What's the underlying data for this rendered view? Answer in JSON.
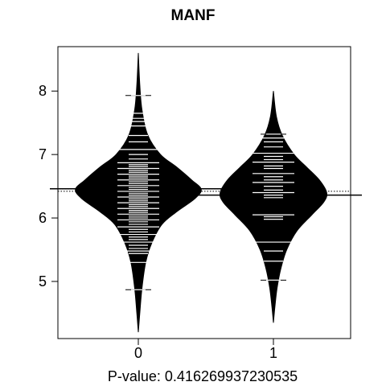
{
  "chart_data": {
    "type": "beanplot",
    "title": "MANF",
    "xlabel": "P-value: 0.416269937230535",
    "ylabel": "",
    "categories": [
      "0",
      "1"
    ],
    "y_ticks": [
      5,
      6,
      7,
      8
    ],
    "x_ticks": [
      "0",
      "1"
    ],
    "ylim": [
      4.1,
      8.7
    ],
    "overall_line": 6.42,
    "colors": {
      "bean_fill": "#000000",
      "data_line": "#ffffff",
      "axis": "#000000"
    },
    "series": [
      {
        "group": "0",
        "mean": 6.46,
        "density": [
          [
            4.2,
            0.0
          ],
          [
            4.5,
            0.02
          ],
          [
            4.9,
            0.05
          ],
          [
            5.3,
            0.1
          ],
          [
            5.6,
            0.18
          ],
          [
            5.9,
            0.32
          ],
          [
            6.1,
            0.52
          ],
          [
            6.3,
            0.76
          ],
          [
            6.45,
            0.85
          ],
          [
            6.6,
            0.72
          ],
          [
            6.8,
            0.52
          ],
          [
            7.0,
            0.3
          ],
          [
            7.3,
            0.13
          ],
          [
            7.7,
            0.05
          ],
          [
            8.1,
            0.02
          ],
          [
            8.6,
            0.0
          ]
        ],
        "points": [
          4.87,
          5.3,
          5.44,
          5.48,
          5.52,
          5.57,
          5.62,
          5.66,
          5.7,
          5.74,
          5.78,
          5.82,
          5.86,
          5.9,
          5.94,
          5.97,
          6.0,
          6.03,
          6.06,
          6.09,
          6.12,
          6.15,
          6.18,
          6.21,
          6.24,
          6.27,
          6.3,
          6.33,
          6.36,
          6.39,
          6.42,
          6.45,
          6.48,
          6.51,
          6.54,
          6.57,
          6.6,
          6.63,
          6.66,
          6.69,
          6.72,
          6.75,
          6.78,
          6.81,
          6.84,
          6.87,
          6.93,
          7.0,
          7.08,
          7.2,
          7.3,
          7.45,
          7.52,
          7.57,
          7.65,
          7.93
        ]
      },
      {
        "group": "1",
        "mean": 6.36,
        "density": [
          [
            4.35,
            0.0
          ],
          [
            4.6,
            0.02
          ],
          [
            4.9,
            0.05
          ],
          [
            5.2,
            0.1
          ],
          [
            5.5,
            0.18
          ],
          [
            5.8,
            0.32
          ],
          [
            6.05,
            0.52
          ],
          [
            6.25,
            0.68
          ],
          [
            6.4,
            0.72
          ],
          [
            6.6,
            0.62
          ],
          [
            6.8,
            0.45
          ],
          [
            7.0,
            0.28
          ],
          [
            7.3,
            0.12
          ],
          [
            7.6,
            0.04
          ],
          [
            8.0,
            0.0
          ]
        ],
        "points": [
          5.02,
          5.32,
          5.48,
          5.62,
          5.98,
          6.02,
          6.05,
          6.32,
          6.36,
          6.4,
          6.44,
          6.5,
          6.56,
          6.6,
          6.65,
          6.7,
          6.78,
          6.82,
          6.88,
          6.92,
          6.97,
          7.02,
          7.12,
          7.2,
          7.26,
          7.32
        ]
      }
    ]
  }
}
